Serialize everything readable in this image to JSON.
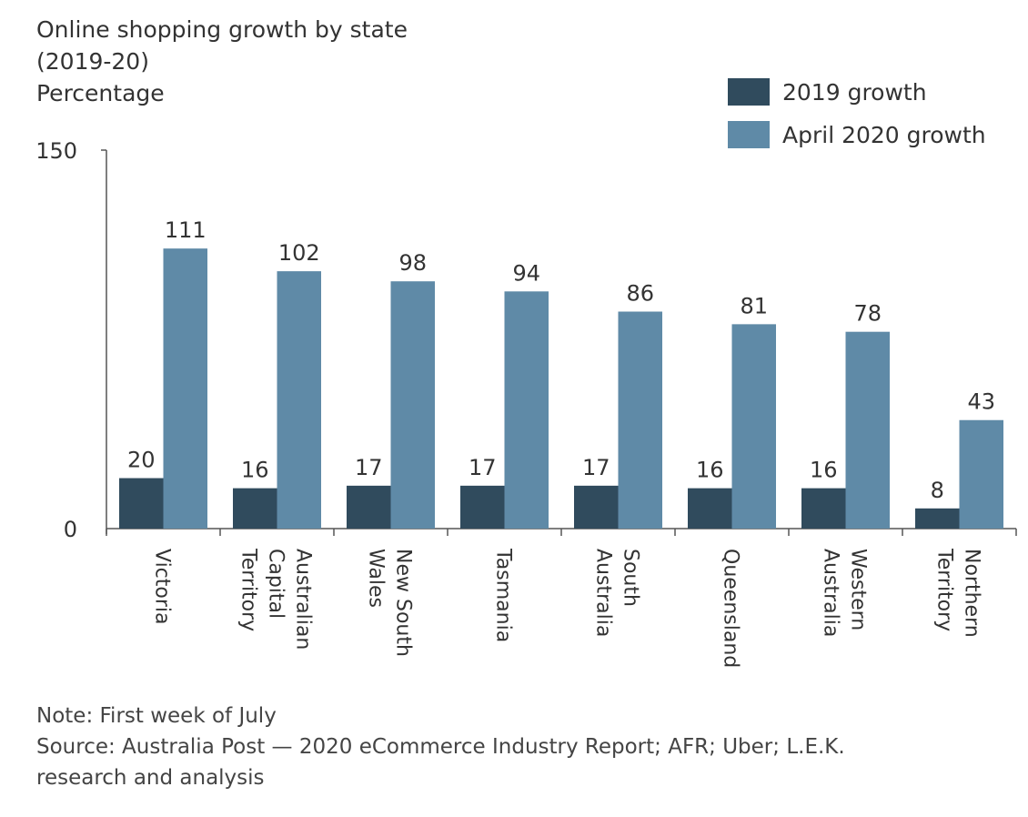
{
  "chart_data": {
    "type": "bar",
    "title_line1": "Online shopping growth by state",
    "title_line2": "(2019-20)",
    "ylabel": "Percentage",
    "ylim": [
      0,
      150
    ],
    "yticks": [
      "0",
      "150"
    ],
    "legend_position": "top-right",
    "categories": [
      [
        "Victoria"
      ],
      [
        "Australian",
        "Capital",
        "Territory"
      ],
      [
        "New South",
        "Wales"
      ],
      [
        "Tasmania"
      ],
      [
        "South",
        "Australia"
      ],
      [
        "Queensland"
      ],
      [
        "Western",
        "Australia"
      ],
      [
        "Northern",
        "Territory"
      ]
    ],
    "series": [
      {
        "name": "2019 growth",
        "color": "#304b5d",
        "values": [
          20,
          16,
          17,
          17,
          17,
          16,
          16,
          8
        ]
      },
      {
        "name": "April 2020 growth",
        "color": "#5f8aa7",
        "values": [
          111,
          102,
          98,
          94,
          86,
          81,
          78,
          43
        ]
      }
    ]
  },
  "notes": {
    "note": "Note: First week of July",
    "source_line1": "Source: Australia Post — 2020 eCommerce Industry Report; AFR; Uber; L.E.K.",
    "source_line2": "research and analysis"
  }
}
